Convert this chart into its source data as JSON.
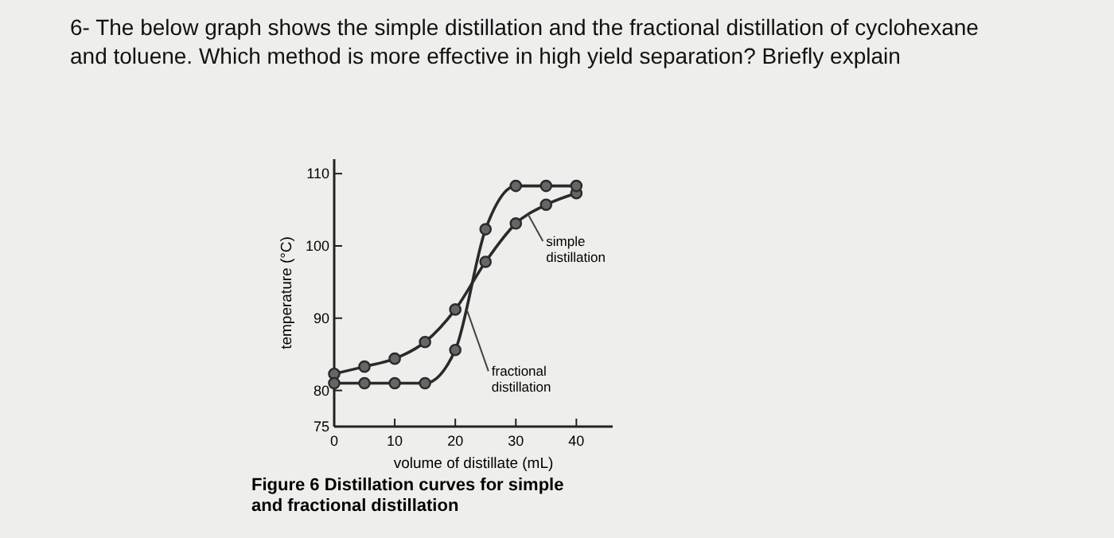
{
  "chart_data": {
    "type": "line",
    "title": "6- The below graph shows the simple distillation and the fractional distillation of cyclohexane and toluene. Which method is more effective in high yield separation? Briefly explain",
    "xlabel": "volume of distillate (mL)",
    "ylabel": "temperature (°C)",
    "x": [
      0,
      5,
      10,
      15,
      20,
      25,
      30,
      35,
      40
    ],
    "series": [
      {
        "name": "simple distillation",
        "color": "#2a2a2a",
        "values": [
          82.3,
          83.3,
          84.4,
          86.7,
          91.2,
          97.8,
          103.1,
          105.7,
          107.3
        ]
      },
      {
        "name": "fractional distillation",
        "color": "#2a2a2a",
        "values": [
          81,
          81,
          81,
          81,
          85.6,
          102.3,
          108.3,
          108.3,
          108.3
        ]
      }
    ],
    "xlim": [
      0,
      46
    ],
    "ylim": [
      75,
      112
    ],
    "xticks": [
      0,
      10,
      20,
      30,
      40
    ],
    "yticks": [
      75,
      80,
      90,
      100,
      110
    ],
    "marker": "circle",
    "line_style": "solid",
    "annotations": [
      "Figure 6    Distillation curves for simple and fractional distillation"
    ]
  }
}
